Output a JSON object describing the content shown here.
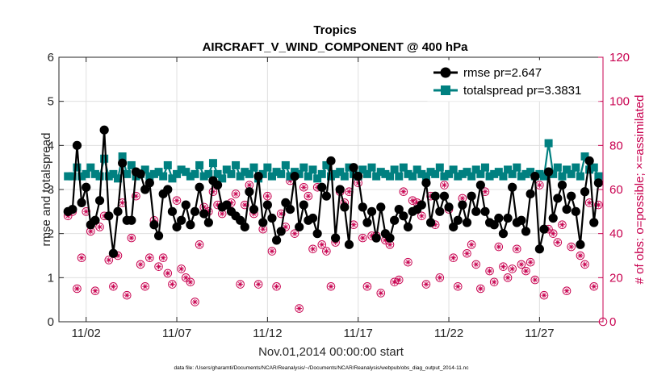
{
  "chart_data": {
    "type": "line",
    "title": "Tropics",
    "subtitle": "AIRCRAFT_V_WIND_COMPONENT @ 400 hPa",
    "xlabel": "Nov.01,2014 00:00:00 start",
    "ylabel": "rmse and totalspread",
    "y2label": "# of obs: o=possible; ×=assimilated",
    "footnote": "data file: /Users/gharamti/Documents/NCAR/Reanalysis/~/Documents/NCAR/Reanalysis/webpub/obs_diag_output_2014-11.nc",
    "xlim": [
      0.5,
      30.5
    ],
    "ylim": [
      0,
      6
    ],
    "y2lim": [
      0,
      120
    ],
    "xticks": [
      2,
      7,
      12,
      17,
      22,
      27
    ],
    "xticklabels": [
      "11/02",
      "11/07",
      "11/12",
      "11/17",
      "11/22",
      "11/27"
    ],
    "yticks": [
      0,
      1,
      2,
      3,
      4,
      5,
      6
    ],
    "y2ticks": [
      0,
      20,
      40,
      60,
      80,
      100,
      120
    ],
    "legend_position": "top-right",
    "grid": true,
    "series": [
      {
        "name": "rmse pr=2.647",
        "axis": "left",
        "color": "#000000",
        "marker": "circle",
        "x": [
          1.0,
          1.25,
          1.5,
          1.75,
          2.0,
          2.25,
          2.5,
          2.75,
          3.0,
          3.25,
          3.5,
          3.75,
          4.0,
          4.25,
          4.5,
          4.75,
          5.0,
          5.25,
          5.5,
          5.75,
          6.0,
          6.25,
          6.5,
          6.75,
          7.0,
          7.25,
          7.5,
          7.75,
          8.0,
          8.25,
          8.5,
          8.75,
          9.0,
          9.25,
          9.5,
          9.75,
          10.0,
          10.25,
          10.5,
          10.75,
          11.0,
          11.25,
          11.5,
          11.75,
          12.0,
          12.25,
          12.5,
          12.75,
          13.0,
          13.25,
          13.5,
          13.75,
          14.0,
          14.25,
          14.5,
          14.75,
          15.0,
          15.25,
          15.5,
          15.75,
          16.0,
          16.25,
          16.5,
          16.75,
          17.0,
          17.25,
          17.5,
          17.75,
          18.0,
          18.25,
          18.5,
          18.75,
          19.0,
          19.25,
          19.5,
          19.75,
          20.0,
          20.25,
          20.5,
          20.75,
          21.0,
          21.25,
          21.5,
          21.75,
          22.0,
          22.25,
          22.5,
          22.75,
          23.0,
          23.25,
          23.5,
          23.75,
          24.0,
          24.25,
          24.5,
          24.75,
          25.0,
          25.25,
          25.5,
          25.75,
          26.0,
          26.25,
          26.5,
          26.75,
          27.0,
          27.25,
          27.5,
          27.75,
          28.0,
          28.25,
          28.5,
          28.75,
          29.0,
          29.25,
          29.5,
          29.75,
          30.0,
          30.25
        ],
        "values": [
          2.5,
          2.55,
          4.0,
          2.7,
          3.05,
          2.2,
          2.3,
          2.75,
          4.35,
          2.4,
          1.55,
          2.5,
          3.6,
          2.3,
          2.3,
          3.4,
          3.35,
          3.0,
          3.15,
          2.2,
          1.95,
          2.9,
          3.0,
          2.5,
          2.15,
          2.3,
          2.65,
          2.2,
          2.5,
          3.05,
          2.45,
          2.25,
          3.2,
          3.1,
          2.6,
          2.65,
          2.5,
          2.4,
          2.3,
          2.15,
          2.95,
          2.55,
          3.3,
          2.25,
          2.65,
          2.35,
          1.85,
          2.05,
          2.7,
          2.55,
          3.3,
          2.15,
          2.65,
          2.3,
          2.35,
          2.0,
          3.05,
          2.85,
          3.65,
          1.9,
          3.0,
          2.6,
          1.75,
          3.5,
          3.3,
          2.6,
          2.25,
          2.5,
          1.9,
          2.6,
          2.0,
          1.9,
          2.3,
          2.55,
          2.4,
          2.15,
          2.5,
          2.55,
          2.65,
          3.15,
          2.25,
          2.85,
          2.5,
          2.85,
          2.6,
          2.15,
          2.3,
          2.65,
          2.25,
          2.85,
          2.5,
          3.1,
          2.5,
          2.25,
          2.2,
          2.35,
          2.0,
          2.35,
          3.05,
          2.25,
          2.3,
          2.05,
          2.9,
          3.3,
          1.65,
          2.1,
          3.4,
          2.35,
          2.8,
          3.1,
          2.55,
          2.85,
          2.5,
          1.75,
          2.95,
          3.65,
          2.25,
          3.15
        ]
      },
      {
        "name": "totalspread pr=3.3831",
        "axis": "left",
        "color": "#008080",
        "marker": "square",
        "x": [
          1.0,
          1.25,
          1.5,
          1.75,
          2.0,
          2.25,
          2.5,
          2.75,
          3.0,
          3.25,
          3.5,
          3.75,
          4.0,
          4.25,
          4.5,
          4.75,
          5.0,
          5.25,
          5.5,
          5.75,
          6.0,
          6.25,
          6.5,
          6.75,
          7.0,
          7.25,
          7.5,
          7.75,
          8.0,
          8.25,
          8.5,
          8.75,
          9.0,
          9.25,
          9.5,
          9.75,
          10.0,
          10.25,
          10.5,
          10.75,
          11.0,
          11.25,
          11.5,
          11.75,
          12.0,
          12.25,
          12.5,
          12.75,
          13.0,
          13.25,
          13.5,
          13.75,
          14.0,
          14.25,
          14.5,
          14.75,
          15.0,
          15.25,
          15.5,
          15.75,
          16.0,
          16.25,
          16.5,
          16.75,
          17.0,
          17.25,
          17.5,
          17.75,
          18.0,
          18.25,
          18.5,
          18.75,
          19.0,
          19.25,
          19.5,
          19.75,
          20.0,
          20.25,
          20.5,
          20.75,
          21.0,
          21.25,
          21.5,
          21.75,
          22.0,
          22.25,
          22.5,
          22.75,
          23.0,
          23.25,
          23.5,
          23.75,
          24.0,
          24.25,
          24.5,
          24.75,
          25.0,
          25.25,
          25.5,
          25.75,
          26.0,
          26.25,
          26.5,
          26.75,
          27.0,
          27.25,
          27.5,
          27.75,
          28.0,
          28.25,
          28.5,
          28.75,
          29.0,
          29.25,
          29.5,
          29.75,
          30.0,
          30.25
        ],
        "values": [
          3.3,
          3.3,
          3.5,
          3.3,
          3.35,
          3.5,
          3.35,
          3.3,
          3.7,
          3.3,
          3.35,
          3.25,
          3.75,
          3.35,
          3.55,
          3.3,
          3.35,
          3.45,
          3.3,
          3.35,
          3.4,
          3.3,
          3.55,
          3.25,
          3.35,
          3.45,
          3.4,
          3.3,
          3.35,
          3.55,
          3.3,
          3.35,
          3.6,
          3.35,
          3.25,
          3.45,
          3.35,
          3.55,
          3.3,
          3.4,
          3.35,
          3.5,
          3.25,
          3.35,
          3.5,
          3.3,
          3.4,
          3.35,
          3.55,
          3.3,
          3.4,
          3.35,
          3.5,
          3.3,
          3.45,
          3.25,
          3.35,
          3.55,
          3.3,
          3.35,
          3.4,
          3.3,
          3.5,
          3.35,
          3.3,
          3.45,
          3.35,
          3.5,
          3.3,
          3.4,
          3.35,
          3.3,
          3.45,
          3.3,
          3.5,
          3.35,
          3.3,
          3.45,
          3.35,
          3.3,
          3.4,
          3.35,
          3.5,
          3.3,
          3.35,
          3.45,
          3.3,
          3.35,
          3.4,
          3.3,
          3.45,
          3.35,
          3.5,
          3.3,
          3.35,
          3.4,
          3.3,
          3.45,
          3.35,
          3.5,
          3.3,
          3.35,
          3.4,
          3.3,
          3.35,
          3.3,
          4.05,
          3.35,
          3.5,
          3.3,
          3.45,
          3.35,
          3.5,
          3.3,
          3.75,
          3.45,
          3.5,
          3.3
        ]
      },
      {
        "name": "# obs possible",
        "axis": "right",
        "color": "#c8004f",
        "marker": "circle-open",
        "x": [
          1.0,
          1.25,
          1.5,
          1.75,
          2.0,
          2.25,
          2.5,
          2.75,
          3.0,
          3.25,
          3.5,
          3.75,
          4.0,
          4.25,
          4.5,
          4.75,
          5.0,
          5.25,
          5.5,
          5.75,
          6.0,
          6.25,
          6.5,
          6.75,
          7.0,
          7.25,
          7.5,
          7.75,
          8.0,
          8.25,
          8.5,
          8.75,
          9.0,
          9.25,
          9.5,
          9.75,
          10.0,
          10.25,
          10.5,
          10.75,
          11.0,
          11.25,
          11.5,
          11.75,
          12.0,
          12.25,
          12.5,
          12.75,
          13.0,
          13.25,
          13.5,
          13.75,
          14.0,
          14.25,
          14.5,
          14.75,
          15.0,
          15.25,
          15.5,
          15.75,
          16.0,
          16.25,
          16.5,
          16.75,
          17.0,
          17.25,
          17.5,
          17.75,
          18.0,
          18.25,
          18.5,
          18.75,
          19.0,
          19.25,
          19.5,
          19.75,
          20.0,
          20.25,
          20.5,
          20.75,
          21.0,
          21.25,
          21.5,
          21.75,
          22.0,
          22.25,
          22.5,
          22.75,
          23.0,
          23.25,
          23.5,
          23.75,
          24.0,
          24.25,
          24.5,
          24.75,
          25.0,
          25.25,
          25.5,
          25.75,
          26.0,
          26.25,
          26.5,
          26.75,
          27.0,
          27.25,
          27.5,
          27.75,
          28.0,
          28.25,
          28.5,
          28.75,
          29.0,
          29.25,
          29.5,
          29.75,
          30.0,
          30.25
        ],
        "values": [
          48,
          50,
          15,
          29,
          50,
          41,
          14,
          43,
          48,
          28,
          16,
          30,
          54,
          12,
          38,
          57,
          26,
          16,
          29,
          46,
          25,
          29,
          22,
          17,
          55,
          24,
          20,
          18,
          9,
          35,
          52,
          50,
          59,
          53,
          49,
          53,
          54,
          58,
          17,
          53,
          62,
          49,
          17,
          42,
          57,
          32,
          16,
          49,
          43,
          64,
          40,
          6,
          61,
          57,
          33,
          61,
          35,
          32,
          16,
          36,
          59,
          54,
          59,
          44,
          63,
          38,
          16,
          39,
          39,
          13,
          37,
          35,
          18,
          19,
          59,
          27,
          55,
          54,
          48,
          17,
          57,
          44,
          20,
          62,
          51,
          29,
          16,
          56,
          31,
          35,
          26,
          15,
          59,
          23,
          18,
          34,
          25,
          20,
          24,
          33,
          26,
          23,
          27,
          19,
          62,
          12,
          42,
          40,
          36,
          44,
          14,
          34,
          50,
          30,
          26,
          54,
          16,
          53
        ]
      },
      {
        "name": "# obs assimilated",
        "axis": "right",
        "color": "#c8004f",
        "marker": "asterisk",
        "x": [
          1.0,
          1.25,
          1.5,
          1.75,
          2.0,
          2.25,
          2.5,
          2.75,
          3.0,
          3.25,
          3.5,
          3.75,
          4.0,
          4.25,
          4.5,
          4.75,
          5.0,
          5.25,
          5.5,
          5.75,
          6.0,
          6.25,
          6.5,
          6.75,
          7.0,
          7.25,
          7.5,
          7.75,
          8.0,
          8.25,
          8.5,
          8.75,
          9.0,
          9.25,
          9.5,
          9.75,
          10.0,
          10.25,
          10.5,
          10.75,
          11.0,
          11.25,
          11.5,
          11.75,
          12.0,
          12.25,
          12.5,
          12.75,
          13.0,
          13.25,
          13.5,
          13.75,
          14.0,
          14.25,
          14.5,
          14.75,
          15.0,
          15.25,
          15.5,
          15.75,
          16.0,
          16.25,
          16.5,
          16.75,
          17.0,
          17.25,
          17.5,
          17.75,
          18.0,
          18.25,
          18.5,
          18.75,
          19.0,
          19.25,
          19.5,
          19.75,
          20.0,
          20.25,
          20.5,
          20.75,
          21.0,
          21.25,
          21.5,
          21.75,
          22.0,
          22.25,
          22.5,
          22.75,
          23.0,
          23.25,
          23.5,
          23.75,
          24.0,
          24.25,
          24.5,
          24.75,
          25.0,
          25.25,
          25.5,
          25.75,
          26.0,
          26.25,
          26.5,
          26.75,
          27.0,
          27.25,
          27.5,
          27.75,
          28.0,
          28.25,
          28.5,
          28.75,
          29.0,
          29.25,
          29.5,
          29.75,
          30.0,
          30.25
        ],
        "values": [
          48,
          50,
          15,
          29,
          50,
          41,
          14,
          43,
          48,
          28,
          16,
          30,
          54,
          12,
          38,
          57,
          26,
          16,
          29,
          46,
          25,
          29,
          22,
          17,
          55,
          24,
          20,
          18,
          9,
          35,
          52,
          50,
          59,
          53,
          49,
          53,
          54,
          58,
          17,
          53,
          62,
          49,
          17,
          42,
          57,
          32,
          16,
          49,
          43,
          64,
          40,
          6,
          61,
          57,
          33,
          61,
          35,
          32,
          16,
          36,
          59,
          54,
          59,
          44,
          63,
          38,
          16,
          39,
          39,
          13,
          37,
          35,
          18,
          19,
          59,
          27,
          55,
          54,
          48,
          17,
          57,
          44,
          20,
          62,
          51,
          29,
          16,
          56,
          31,
          35,
          26,
          15,
          59,
          23,
          18,
          34,
          25,
          20,
          24,
          33,
          26,
          23,
          27,
          19,
          62,
          12,
          42,
          40,
          36,
          44,
          14,
          34,
          50,
          30,
          26,
          54,
          16,
          53
        ]
      }
    ],
    "extra_points": [
      {
        "series": "# obs possible",
        "x": 30.5,
        "value": 0
      }
    ]
  }
}
